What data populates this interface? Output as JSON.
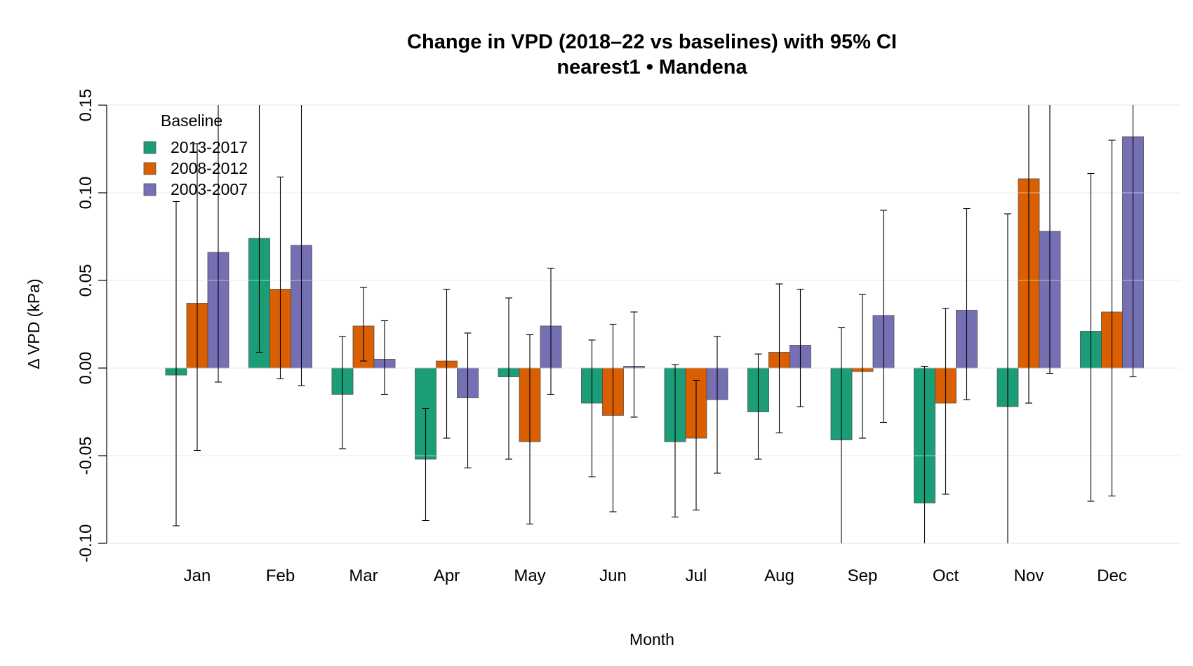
{
  "chart_data": {
    "type": "bar",
    "title": "Change in VPD (2018–22 vs baselines) with 95% CI",
    "subtitle": "nearest1 • Mandena",
    "xlabel": "Month",
    "ylabel": "Δ VPD (kPa)",
    "ylim": [
      -0.1,
      0.15
    ],
    "yticks": [
      "-0.10",
      "-0.05",
      "0.00",
      "0.05",
      "0.10",
      "0.15"
    ],
    "grid": true,
    "legend": {
      "title": "Baseline",
      "placement": "top-left"
    },
    "categories": [
      "Jan",
      "Feb",
      "Mar",
      "Apr",
      "May",
      "Jun",
      "Jul",
      "Aug",
      "Sep",
      "Oct",
      "Nov",
      "Dec"
    ],
    "series": [
      {
        "name": "2013-2017",
        "color": "#1b9e77",
        "values": [
          -0.004,
          0.074,
          -0.015,
          -0.052,
          -0.005,
          -0.02,
          -0.042,
          -0.025,
          -0.041,
          -0.077,
          -0.022,
          0.021
        ],
        "ci_low": [
          -0.09,
          0.009,
          -0.046,
          -0.087,
          -0.052,
          -0.062,
          -0.085,
          -0.052,
          -0.125,
          -0.14,
          -0.13,
          -0.076
        ],
        "ci_high": [
          0.095,
          0.19,
          0.018,
          -0.023,
          0.04,
          0.016,
          0.002,
          0.008,
          0.023,
          0.001,
          0.088,
          0.111
        ]
      },
      {
        "name": "2008-2012",
        "color": "#d95f02",
        "values": [
          0.037,
          0.045,
          0.024,
          0.004,
          -0.042,
          -0.027,
          -0.04,
          0.009,
          -0.002,
          -0.02,
          0.108,
          0.032
        ],
        "ci_low": [
          -0.047,
          -0.006,
          0.004,
          -0.04,
          -0.089,
          -0.082,
          -0.081,
          -0.037,
          -0.04,
          -0.072,
          -0.02,
          -0.073
        ],
        "ci_high": [
          0.128,
          0.109,
          0.046,
          0.045,
          0.019,
          0.025,
          -0.007,
          0.048,
          0.042,
          0.034,
          0.24,
          0.13
        ]
      },
      {
        "name": "2003-2007",
        "color": "#7570b3",
        "values": [
          0.066,
          0.07,
          0.005,
          -0.017,
          0.024,
          0.001,
          -0.018,
          0.013,
          0.03,
          0.033,
          0.078,
          0.132
        ],
        "ci_low": [
          -0.008,
          -0.01,
          -0.015,
          -0.057,
          -0.015,
          -0.028,
          -0.06,
          -0.022,
          -0.031,
          -0.018,
          -0.003,
          -0.005
        ],
        "ci_high": [
          0.2,
          0.2,
          0.027,
          0.02,
          0.057,
          0.032,
          0.018,
          0.045,
          0.09,
          0.091,
          0.22,
          0.23
        ]
      }
    ]
  }
}
